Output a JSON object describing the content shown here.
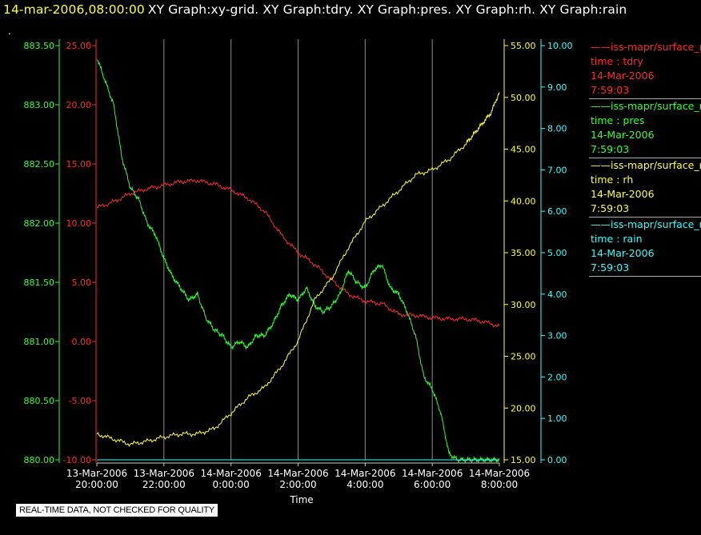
{
  "header": {
    "timestamp": "14-mar-2006,08:00:00",
    "title": "XY Graph:xy-grid.  XY Graph:tdry.  XY Graph:pres.  XY Graph:rh.  XY Graph:rain",
    "dot": "."
  },
  "disclaimer": "REAL-TIME DATA, NOT CHECKED FOR QUALITY",
  "legend": [
    {
      "series": "iss-mapr/surface_m",
      "var": "time : tdry",
      "date": "14-Mar-2006",
      "time": "7:59:03",
      "color": "#ff2a2a"
    },
    {
      "series": "iss-mapr/surface_m",
      "var": "time : pres",
      "date": "14-Mar-2006",
      "time": "7:59:03",
      "color": "#33ff33"
    },
    {
      "series": "iss-mapr/surface_m",
      "var": "time : rh",
      "date": "14-Mar-2006",
      "time": "7:59:03",
      "color": "#ffff33"
    },
    {
      "series": "iss-mapr/surface_m",
      "var": "time : rain",
      "date": "14-Mar-2006",
      "time": "7:59:03",
      "color": "#33ffff"
    }
  ],
  "chart_data": {
    "type": "line",
    "title": "XY Graph:xy-grid.  XY Graph:tdry.  XY Graph:pres.  XY Graph:rh.  XY Graph:rain",
    "xlabel": "Time",
    "x_ticks": [
      [
        "13-Mar-2006",
        "20:00:00"
      ],
      [
        "13-Mar-2006",
        "22:00:00"
      ],
      [
        "14-Mar-2006",
        "0:00:00"
      ],
      [
        "14-Mar-2006",
        "2:00:00"
      ],
      [
        "14-Mar-2006",
        "4:00:00"
      ],
      [
        "14-Mar-2006",
        "6:00:00"
      ],
      [
        "14-Mar-2006",
        "8:00:00"
      ]
    ],
    "xlim_hours": [
      0,
      12
    ],
    "grid": "vertical",
    "axes": [
      {
        "key": "pres",
        "color": "#33ff33",
        "side": "left",
        "ylim": [
          880.0,
          883.5
        ],
        "ticks": [
          "880.00",
          "880.50",
          "881.00",
          "881.50",
          "882.00",
          "882.50",
          "883.00",
          "883.50"
        ],
        "tick_values": [
          880.0,
          880.5,
          881.0,
          881.5,
          882.0,
          882.5,
          883.0,
          883.5
        ]
      },
      {
        "key": "tdry",
        "color": "#ff2a2a",
        "side": "left",
        "ylim": [
          -10,
          25
        ],
        "ticks": [
          "-10.00",
          "-5.00",
          "0.00",
          "5.00",
          "10.00",
          "15.00",
          "20.00",
          "25.00"
        ],
        "tick_values": [
          -10,
          -5,
          0,
          5,
          10,
          15,
          20,
          25
        ]
      },
      {
        "key": "rh",
        "color": "#ffff33",
        "side": "right",
        "ylim": [
          15,
          55
        ],
        "ticks": [
          "15.00",
          "20.00",
          "25.00",
          "30.00",
          "35.00",
          "40.00",
          "45.00",
          "50.00",
          "55.00"
        ],
        "tick_values": [
          15,
          20,
          25,
          30,
          35,
          40,
          45,
          50,
          55
        ]
      },
      {
        "key": "rain",
        "color": "#33ffff",
        "side": "right",
        "ylim": [
          0,
          10
        ],
        "ticks": [
          "0.00",
          "1.00",
          "2.00",
          "3.00",
          "4.00",
          "5.00",
          "6.00",
          "7.00",
          "8.00",
          "9.00",
          "10.00"
        ],
        "tick_values": [
          0,
          1,
          2,
          3,
          4,
          5,
          6,
          7,
          8,
          9,
          10
        ]
      }
    ],
    "series": [
      {
        "name": "time : tdry",
        "axis": "tdry",
        "color": "#ff2a2a",
        "x": [
          0,
          0.5,
          1,
          1.5,
          2,
          2.5,
          3,
          3.5,
          4,
          4.5,
          5,
          5.5,
          6,
          6.5,
          7,
          7.5,
          8,
          8.5,
          9,
          9.5,
          10,
          10.5,
          11,
          11.5,
          12
        ],
        "y": [
          11.3,
          11.8,
          12.5,
          12.9,
          13.2,
          13.5,
          13.6,
          13.3,
          12.8,
          12.1,
          11.0,
          9.0,
          7.5,
          6.5,
          5.2,
          4.0,
          3.4,
          3.2,
          2.3,
          2.2,
          2.0,
          1.9,
          1.9,
          1.7,
          1.3
        ]
      },
      {
        "name": "time : pres",
        "axis": "pres",
        "color": "#33ff33",
        "x": [
          0,
          0.25,
          0.5,
          0.75,
          1,
          1.25,
          1.5,
          1.75,
          2,
          2.25,
          2.5,
          2.75,
          3,
          3.25,
          3.5,
          3.75,
          4,
          4.25,
          4.5,
          4.75,
          5,
          5.25,
          5.5,
          5.75,
          6,
          6.25,
          6.5,
          6.75,
          7,
          7.25,
          7.5,
          7.75,
          8,
          8.25,
          8.5,
          8.75,
          9,
          9.25,
          9.5,
          9.75,
          10,
          10.25,
          10.5,
          10.75,
          11,
          11.25,
          11.5,
          11.75,
          12
        ],
        "y": [
          883.4,
          883.2,
          883.0,
          882.55,
          882.3,
          882.2,
          882.0,
          881.9,
          881.7,
          881.55,
          881.45,
          881.35,
          881.4,
          881.2,
          881.1,
          881.05,
          880.95,
          881.0,
          880.95,
          881.05,
          881.05,
          881.15,
          881.3,
          881.4,
          881.35,
          881.45,
          881.3,
          881.25,
          881.3,
          881.4,
          881.6,
          881.5,
          881.45,
          881.6,
          881.65,
          881.45,
          881.4,
          881.25,
          881.05,
          880.7,
          880.6,
          880.4,
          880.05,
          880.0,
          880.0,
          880.0,
          880.0,
          880.0,
          880.0
        ]
      },
      {
        "name": "time : rh",
        "axis": "rh",
        "color": "#ffff33",
        "x": [
          0,
          0.5,
          1,
          1.5,
          2,
          2.5,
          3,
          3.5,
          4,
          4.5,
          5,
          5.5,
          6,
          6.5,
          7,
          7.5,
          8,
          8.5,
          9,
          9.5,
          10,
          10.5,
          11,
          11.25,
          11.5,
          11.75,
          12
        ],
        "y": [
          17.5,
          17.0,
          16.5,
          16.8,
          17.2,
          17.5,
          17.5,
          18.0,
          19.5,
          21.0,
          22.0,
          24.0,
          26.5,
          30.5,
          32.5,
          35.5,
          38.0,
          39.5,
          41.0,
          42.5,
          43.0,
          44.0,
          45.5,
          46.5,
          47.5,
          48.5,
          50.5
        ]
      },
      {
        "name": "time : rain",
        "axis": "rain",
        "color": "#33ffff",
        "x": [
          0,
          12
        ],
        "y": [
          0,
          0
        ]
      }
    ]
  }
}
